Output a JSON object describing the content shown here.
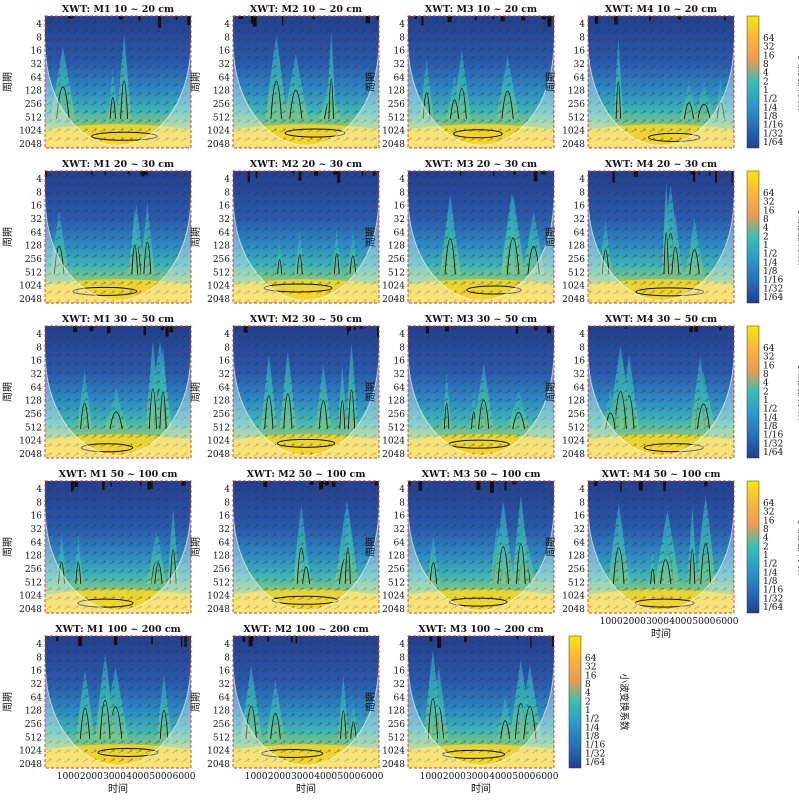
{
  "chart_data": {
    "type": "heatmap",
    "description": "Cross wavelet transform (XWT) panels",
    "x_axis": {
      "label": "时间",
      "ticks": [
        1000,
        2000,
        3000,
        4000,
        5000,
        6000
      ],
      "range": [
        0,
        6300
      ]
    },
    "y_axis": {
      "label": "周期",
      "ticks": [
        "4",
        "8",
        "16",
        "32",
        "64",
        "128",
        "256",
        "512",
        "1024",
        "2048"
      ],
      "scale": "log2",
      "range": [
        4,
        2048
      ]
    },
    "colorbar": {
      "label": "小波变换系数",
      "ticks": [
        "64",
        "32",
        "16",
        "8",
        "4",
        "2",
        "1",
        "1/2",
        "1/4",
        "1/8",
        "1/16",
        "1/32",
        "1/64"
      ],
      "colors": [
        "#F9E60F",
        "#FBB53B",
        "#E99B52",
        "#39BFB3",
        "#2E99C9",
        "#2570B8",
        "#213F8E"
      ]
    },
    "panels": [
      {
        "title": "XWT: M1 10 ~ 20 cm"
      },
      {
        "title": "XWT: M2 10 ~ 20 cm"
      },
      {
        "title": "XWT: M3 10 ~ 20 cm"
      },
      {
        "title": "XWT: M4 10 ~ 20 cm"
      },
      {
        "title": "XWT: M1 20 ~ 30 cm"
      },
      {
        "title": "XWT: M2 20 ~ 30 cm"
      },
      {
        "title": "XWT: M3 20 ~ 30 cm"
      },
      {
        "title": "XWT: M4 20 ~ 30 cm"
      },
      {
        "title": "XWT: M1 30 ~ 50 cm"
      },
      {
        "title": "XWT: M2 30 ~ 50 cm"
      },
      {
        "title": "XWT: M3 30 ~ 50 cm"
      },
      {
        "title": "XWT: M4 30 ~ 50 cm"
      },
      {
        "title": "XWT: M1 50 ~ 100 cm"
      },
      {
        "title": "XWT: M2 50 ~ 100 cm"
      },
      {
        "title": "XWT: M3 50 ~ 100 cm"
      },
      {
        "title": "XWT: M4 50 ~ 100 cm"
      },
      {
        "title": "XWT: M1 100 ~ 200 cm"
      },
      {
        "title": "XWT: M2 100 ~ 200 cm"
      },
      {
        "title": "XWT: M3 100 ~ 200 cm"
      }
    ]
  }
}
